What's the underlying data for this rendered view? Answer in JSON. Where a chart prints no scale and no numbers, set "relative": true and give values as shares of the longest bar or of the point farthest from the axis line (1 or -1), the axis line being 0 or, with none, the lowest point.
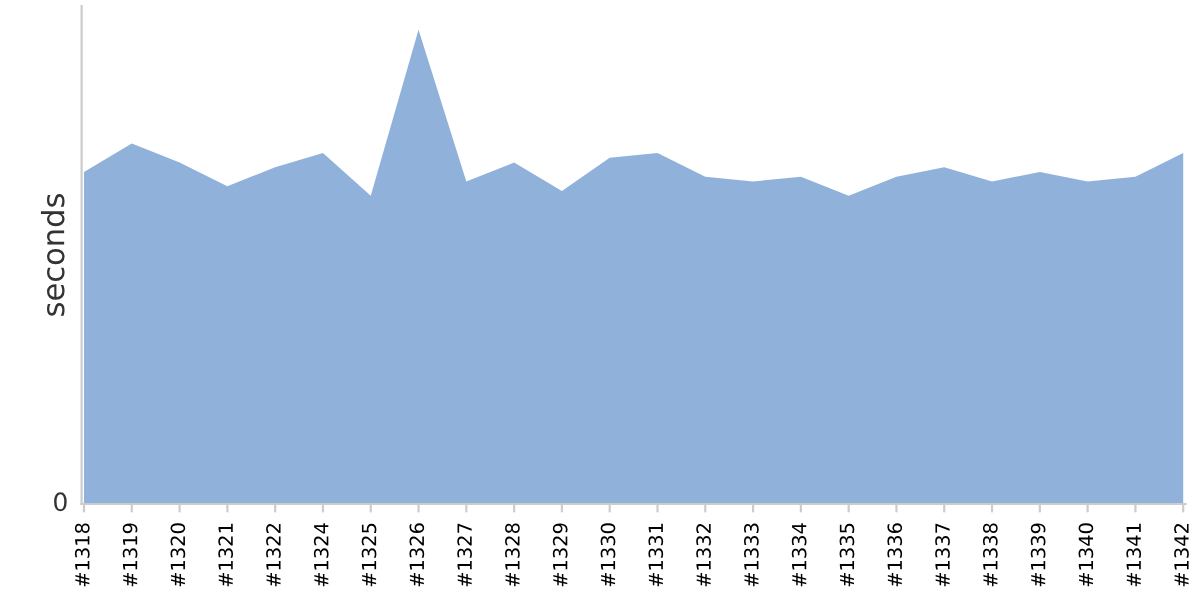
{
  "chart_data": {
    "type": "area",
    "relative": true,
    "ylabel": "seconds",
    "categories": [
      "#1318",
      "#1319",
      "#1320",
      "#1321",
      "#1322",
      "#1324",
      "#1325",
      "#1326",
      "#1327",
      "#1328",
      "#1329",
      "#1330",
      "#1331",
      "#1332",
      "#1333",
      "#1334",
      "#1335",
      "#1336",
      "#1337",
      "#1338",
      "#1339",
      "#1340",
      "#1341",
      "#1342"
    ],
    "series": [
      {
        "color": "#8fb1da",
        "values": [
          0.7,
          0.76,
          0.72,
          0.67,
          0.71,
          0.74,
          0.65,
          1,
          0.68,
          0.72,
          0.66,
          0.73,
          0.74,
          0.69,
          0.68,
          0.69,
          0.65,
          0.69,
          0.71,
          0.68,
          0.7,
          0.68,
          0.69,
          0.74
        ]
      }
    ],
    "annotations": [
      "0"
    ],
    "grid": false,
    "legend": false
  }
}
